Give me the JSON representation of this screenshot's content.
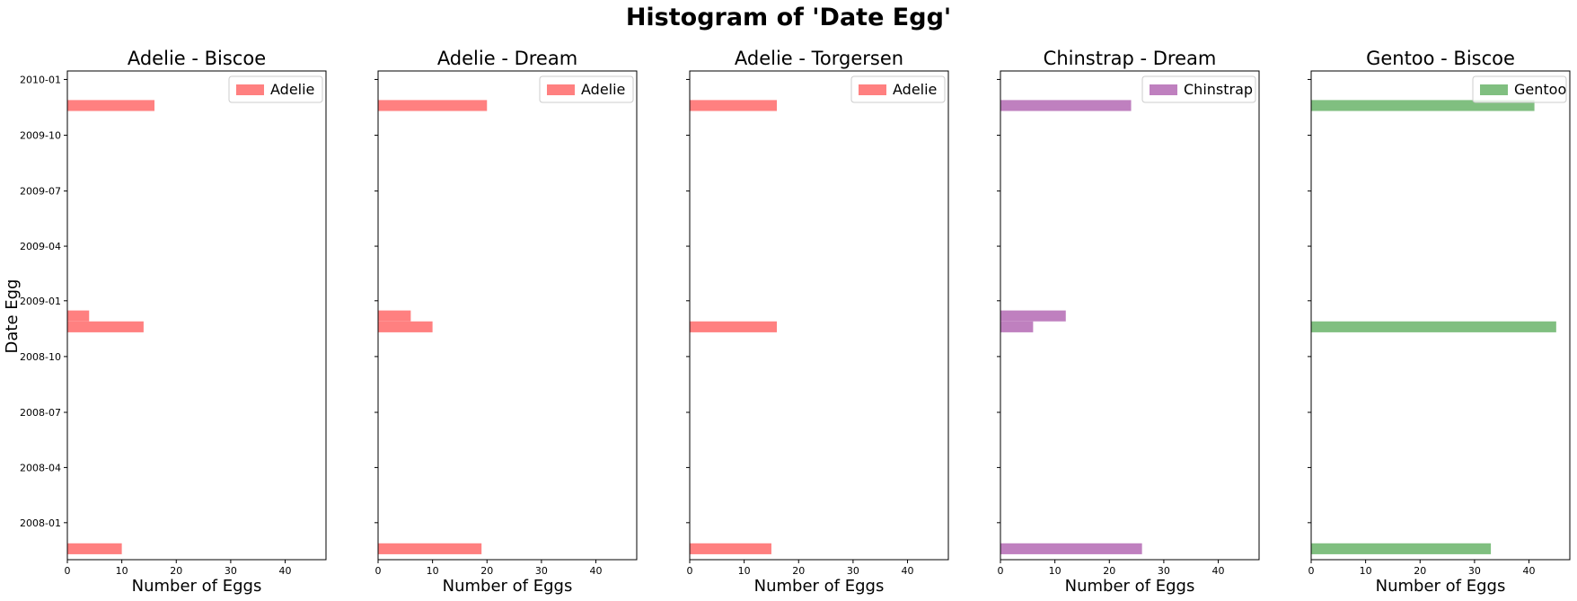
{
  "chart_data": {
    "type": "bar",
    "orientation": "horizontal",
    "title": "Histogram of 'Date Egg'",
    "ylabel": "Date Egg",
    "xlabel": "Number of Eggs",
    "xlim": [
      0,
      47.5
    ],
    "xticks": [
      0,
      10,
      20,
      30,
      40
    ],
    "ylim": [
      "2007-11-01",
      "2010-01-15"
    ],
    "yticks": [
      "2008-01",
      "2008-04",
      "2008-07",
      "2008-10",
      "2009-01",
      "2009-04",
      "2009-07",
      "2009-10",
      "2010-01"
    ],
    "legend_position": "upper right",
    "panels": [
      {
        "title": "Adelie - Biscoe",
        "series": [
          {
            "name": "Adelie",
            "color": "#ff8080",
            "bins": [
              {
                "start": "2007-11-10",
                "end": "2007-11-28",
                "count": 10
              },
              {
                "start": "2008-11-10",
                "end": "2008-11-28",
                "count": 14
              },
              {
                "start": "2008-11-28",
                "end": "2008-12-16",
                "count": 4
              },
              {
                "start": "2009-11-10",
                "end": "2009-11-28",
                "count": 16
              }
            ]
          }
        ]
      },
      {
        "title": "Adelie - Dream",
        "series": [
          {
            "name": "Adelie",
            "color": "#ff8080",
            "bins": [
              {
                "start": "2007-11-10",
                "end": "2007-11-28",
                "count": 19
              },
              {
                "start": "2008-11-10",
                "end": "2008-11-28",
                "count": 10
              },
              {
                "start": "2008-11-28",
                "end": "2008-12-16",
                "count": 6
              },
              {
                "start": "2009-11-10",
                "end": "2009-11-28",
                "count": 20
              }
            ]
          }
        ]
      },
      {
        "title": "Adelie - Torgersen",
        "series": [
          {
            "name": "Adelie",
            "color": "#ff8080",
            "bins": [
              {
                "start": "2007-11-10",
                "end": "2007-11-28",
                "count": 15
              },
              {
                "start": "2008-11-10",
                "end": "2008-11-28",
                "count": 16
              },
              {
                "start": "2009-11-10",
                "end": "2009-11-28",
                "count": 16
              }
            ]
          }
        ]
      },
      {
        "title": "Chinstrap - Dream",
        "series": [
          {
            "name": "Chinstrap",
            "color": "#bf80bf",
            "bins": [
              {
                "start": "2007-11-10",
                "end": "2007-11-28",
                "count": 26
              },
              {
                "start": "2008-11-10",
                "end": "2008-11-28",
                "count": 6
              },
              {
                "start": "2008-11-28",
                "end": "2008-12-16",
                "count": 12
              },
              {
                "start": "2009-11-10",
                "end": "2009-11-28",
                "count": 24
              }
            ]
          }
        ]
      },
      {
        "title": "Gentoo - Biscoe",
        "series": [
          {
            "name": "Gentoo",
            "color": "#80bf80",
            "bins": [
              {
                "start": "2007-11-10",
                "end": "2007-11-28",
                "count": 33
              },
              {
                "start": "2008-11-10",
                "end": "2008-11-28",
                "count": 45
              },
              {
                "start": "2009-11-10",
                "end": "2009-11-28",
                "count": 41
              }
            ]
          }
        ]
      }
    ]
  }
}
